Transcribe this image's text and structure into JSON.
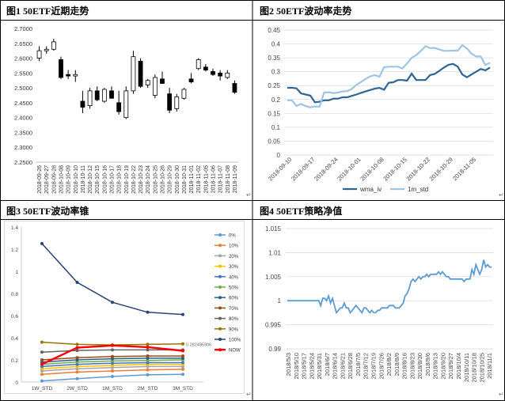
{
  "titles": {
    "p1": "图1 50ETF近期走势",
    "p2": "图2 50ETF波动率走势",
    "p3": "图3 50ETF波动率锥",
    "p4": "图4 50ETF策略净值"
  },
  "para_mark": "↵",
  "chart_data": [
    {
      "id": "candles",
      "type": "candlestick",
      "ylim": [
        2.25,
        2.7
      ],
      "yticks": [
        "2.7000",
        "2.6500",
        "2.6000",
        "2.5500",
        "2.5000",
        "2.4500",
        "2.4000",
        "2.3500",
        "2.3000",
        "2.2500"
      ],
      "categories": [
        "2018-09-26",
        "2018-09-27",
        "2018-09-28",
        "2018-10-08",
        "2018-10-09",
        "2018-10-10",
        "2018-10-11",
        "2018-10-12",
        "2018-10-15",
        "2018-10-16",
        "2018-10-17",
        "2018-10-18",
        "2018-10-19",
        "2018-10-22",
        "2018-10-23",
        "2018-10-24",
        "2018-10-25",
        "2018-10-26",
        "2018-10-29",
        "2018-10-30",
        "2018-10-31",
        "2018-11-01",
        "2018-11-02",
        "2018-11-05",
        "2018-11-06",
        "2018-11-07",
        "2018-11-08",
        "2018-11-09"
      ],
      "ohlc": [
        [
          2.6,
          2.64,
          2.59,
          2.625
        ],
        [
          2.625,
          2.64,
          2.615,
          2.63
        ],
        [
          2.63,
          2.665,
          2.625,
          2.655
        ],
        [
          2.595,
          2.605,
          2.53,
          2.535
        ],
        [
          2.545,
          2.56,
          2.53,
          2.54
        ],
        [
          2.54,
          2.56,
          2.52,
          2.545
        ],
        [
          2.455,
          2.49,
          2.415,
          2.435
        ],
        [
          2.44,
          2.5,
          2.43,
          2.49
        ],
        [
          2.49,
          2.505,
          2.455,
          2.46
        ],
        [
          2.455,
          2.5,
          2.45,
          2.495
        ],
        [
          2.49,
          2.505,
          2.465,
          2.465
        ],
        [
          2.45,
          2.49,
          2.41,
          2.42
        ],
        [
          2.4,
          2.505,
          2.395,
          2.49
        ],
        [
          2.49,
          2.625,
          2.48,
          2.605
        ],
        [
          2.59,
          2.6,
          2.5,
          2.505
        ],
        [
          2.51,
          2.53,
          2.5,
          2.525
        ],
        [
          2.475,
          2.545,
          2.465,
          2.535
        ],
        [
          2.53,
          2.555,
          2.515,
          2.515
        ],
        [
          2.48,
          2.5,
          2.415,
          2.425
        ],
        [
          2.43,
          2.48,
          2.42,
          2.47
        ],
        [
          2.465,
          2.5,
          2.46,
          2.495
        ],
        [
          2.53,
          2.55,
          2.515,
          2.52
        ],
        [
          2.565,
          2.6,
          2.56,
          2.595
        ],
        [
          2.57,
          2.58,
          2.555,
          2.56
        ],
        [
          2.555,
          2.565,
          2.54,
          2.545
        ],
        [
          2.55,
          2.56,
          2.525,
          2.54
        ],
        [
          2.535,
          2.56,
          2.53,
          2.55
        ],
        [
          2.515,
          2.525,
          2.48,
          2.485
        ]
      ]
    },
    {
      "id": "vol_trend",
      "type": "line",
      "ylim": [
        0,
        0.45
      ],
      "yticks": [
        "0.45",
        "0.4",
        "0.35",
        "0.3",
        "0.25",
        "0.2",
        "0.15",
        "0.1",
        "0.05",
        "0"
      ],
      "xticks": [
        "2018-09-10",
        "2018-09-17",
        "2018-09-24",
        "2018-10-01",
        "2018-10-08",
        "2018-10-15",
        "2018-10-22",
        "2018-10-29",
        "2018-11-05"
      ],
      "series": [
        {
          "name": "wma_iv",
          "color": "#2e6595",
          "values": [
            0.242,
            0.242,
            0.24,
            0.222,
            0.218,
            0.214,
            0.19,
            0.192,
            0.197,
            0.197,
            0.203,
            0.203,
            0.208,
            0.208,
            0.213,
            0.218,
            0.224,
            0.229,
            0.234,
            0.239,
            0.242,
            0.235,
            0.26,
            0.262,
            0.27,
            0.27,
            0.268,
            0.293,
            0.27,
            0.27,
            0.27,
            0.288,
            0.292,
            0.303,
            0.315,
            0.325,
            0.328,
            0.318,
            0.29,
            0.28,
            0.29,
            0.3,
            0.31,
            0.305,
            0.315
          ]
        },
        {
          "name": "1m_std",
          "color": "#9dc3e6",
          "values": [
            0.197,
            0.197,
            0.177,
            0.184,
            0.176,
            0.172,
            0.175,
            0.174,
            0.225,
            0.226,
            0.223,
            0.225,
            0.229,
            0.23,
            0.238,
            0.253,
            0.263,
            0.274,
            0.283,
            0.288,
            0.282,
            0.316,
            0.318,
            0.318,
            0.318,
            0.312,
            0.33,
            0.35,
            0.36,
            0.375,
            0.392,
            0.385,
            0.386,
            0.38,
            0.375,
            0.375,
            0.376,
            0.376,
            0.396,
            0.384,
            0.365,
            0.355,
            0.355,
            0.324,
            0.332
          ]
        }
      ]
    },
    {
      "id": "vol_cone",
      "type": "line",
      "ylim": [
        0,
        1.4
      ],
      "yticks": [
        "1.4",
        "1.2",
        "1",
        "0.8",
        "0.6",
        "0.4",
        "0.2",
        "0"
      ],
      "categories": [
        "1W_STD",
        "2W_STD",
        "1M_STD",
        "2M_STD",
        "3M_STD"
      ],
      "annotation": "0.282495906",
      "series": [
        {
          "name": "0%",
          "color": "#5b9bd5",
          "values": [
            0.01,
            0.03,
            0.05,
            0.065,
            0.07
          ]
        },
        {
          "name": "10%",
          "color": "#ed7d31",
          "values": [
            0.07,
            0.09,
            0.1,
            0.11,
            0.115
          ]
        },
        {
          "name": "20%",
          "color": "#a5a5a5",
          "values": [
            0.1,
            0.12,
            0.13,
            0.14,
            0.14
          ]
        },
        {
          "name": "30%",
          "color": "#ffc000",
          "values": [
            0.12,
            0.14,
            0.15,
            0.16,
            0.16
          ]
        },
        {
          "name": "40%",
          "color": "#4472c4",
          "values": [
            0.14,
            0.16,
            0.17,
            0.175,
            0.175
          ]
        },
        {
          "name": "50%",
          "color": "#70ad47",
          "values": [
            0.16,
            0.18,
            0.19,
            0.195,
            0.2
          ]
        },
        {
          "name": "60%",
          "color": "#255e91",
          "values": [
            0.18,
            0.2,
            0.21,
            0.215,
            0.215
          ]
        },
        {
          "name": "70%",
          "color": "#9e480e",
          "values": [
            0.2,
            0.22,
            0.23,
            0.235,
            0.235
          ]
        },
        {
          "name": "80%",
          "color": "#636363",
          "values": [
            0.27,
            0.285,
            0.29,
            0.29,
            0.29
          ]
        },
        {
          "name": "90%",
          "color": "#997300",
          "values": [
            0.36,
            0.34,
            0.335,
            0.34,
            0.345
          ]
        },
        {
          "name": "100%",
          "color": "#264478",
          "values": [
            1.25,
            0.9,
            0.72,
            0.63,
            0.61
          ]
        },
        {
          "name": "NOW",
          "color": "#ff0000",
          "values": [
            0.16,
            0.31,
            0.33,
            0.315,
            0.282
          ]
        }
      ]
    },
    {
      "id": "nav",
      "type": "line",
      "ylim": [
        0.99,
        1.015
      ],
      "yticks": [
        "1.015",
        "1.01",
        "1.005",
        "1",
        "0.995",
        "0.99"
      ],
      "xticks": [
        "2018/5/3",
        "2018/5/10",
        "2018/5/17",
        "2018/5/24",
        "2018/5/31",
        "2018/6/7",
        "2018/6/14",
        "2018/6/21",
        "2018/6/28",
        "2018/7/5",
        "2018/7/12",
        "2018/7/19",
        "2018/7/26",
        "2018/8/2",
        "2018/8/9",
        "2018/8/16",
        "2018/8/23",
        "2018/8/30",
        "2018/9/6",
        "2018/9/13",
        "2018/9/20",
        "2018/9/27",
        "2018/10/4",
        "2018/10/11",
        "2018/10/18",
        "2018/10/25",
        "2018/11/1"
      ],
      "series": [
        {
          "name": "净值",
          "color": "#5b9bd5",
          "values": [
            1,
            1,
            1,
            1,
            1,
            1,
            1,
            1,
            1,
            1,
            1,
            1,
            1,
            1,
            1,
            1,
            1,
            0.999,
            1.0005,
            1.0005,
            1,
            1.001,
            0.9995,
            1.0005,
            0.999,
            0.9975,
            0.998,
            0.9985,
            0.9985,
            0.9995,
            0.9985,
            0.9985,
            0.9975,
            0.998,
            0.9985,
            0.999,
            0.9985,
            0.998,
            0.9975,
            0.9985,
            0.9985,
            0.998,
            0.9975,
            0.998,
            0.9975,
            0.9975,
            0.998,
            0.998,
            0.9985,
            0.9985,
            0.9985,
            0.9985,
            0.999,
            0.999,
            0.999,
            0.9985,
            0.9985,
            0.9985,
            0.999,
            0.9995,
            1.001,
            1.0015,
            1.0025,
            1.004,
            1.0045,
            1.004,
            1.0045,
            1.005,
            1.0045,
            1.005,
            1.005,
            1.0055,
            1.005,
            1.0055,
            1.0055,
            1.0055,
            1.0055,
            1.006,
            1.0055,
            1.006,
            1.0055,
            1.005,
            1.005,
            1.0045,
            1.0045,
            1.0045,
            1.0045,
            1.0045,
            1.0045,
            1.0045,
            1.004,
            1.0045,
            1.0045,
            1.0045,
            1.0065,
            1.0055,
            1.0075,
            1.0065,
            1.0055,
            1.0065,
            1.0085,
            1.007,
            1.0075,
            1.007,
            1.007
          ]
        }
      ]
    }
  ]
}
